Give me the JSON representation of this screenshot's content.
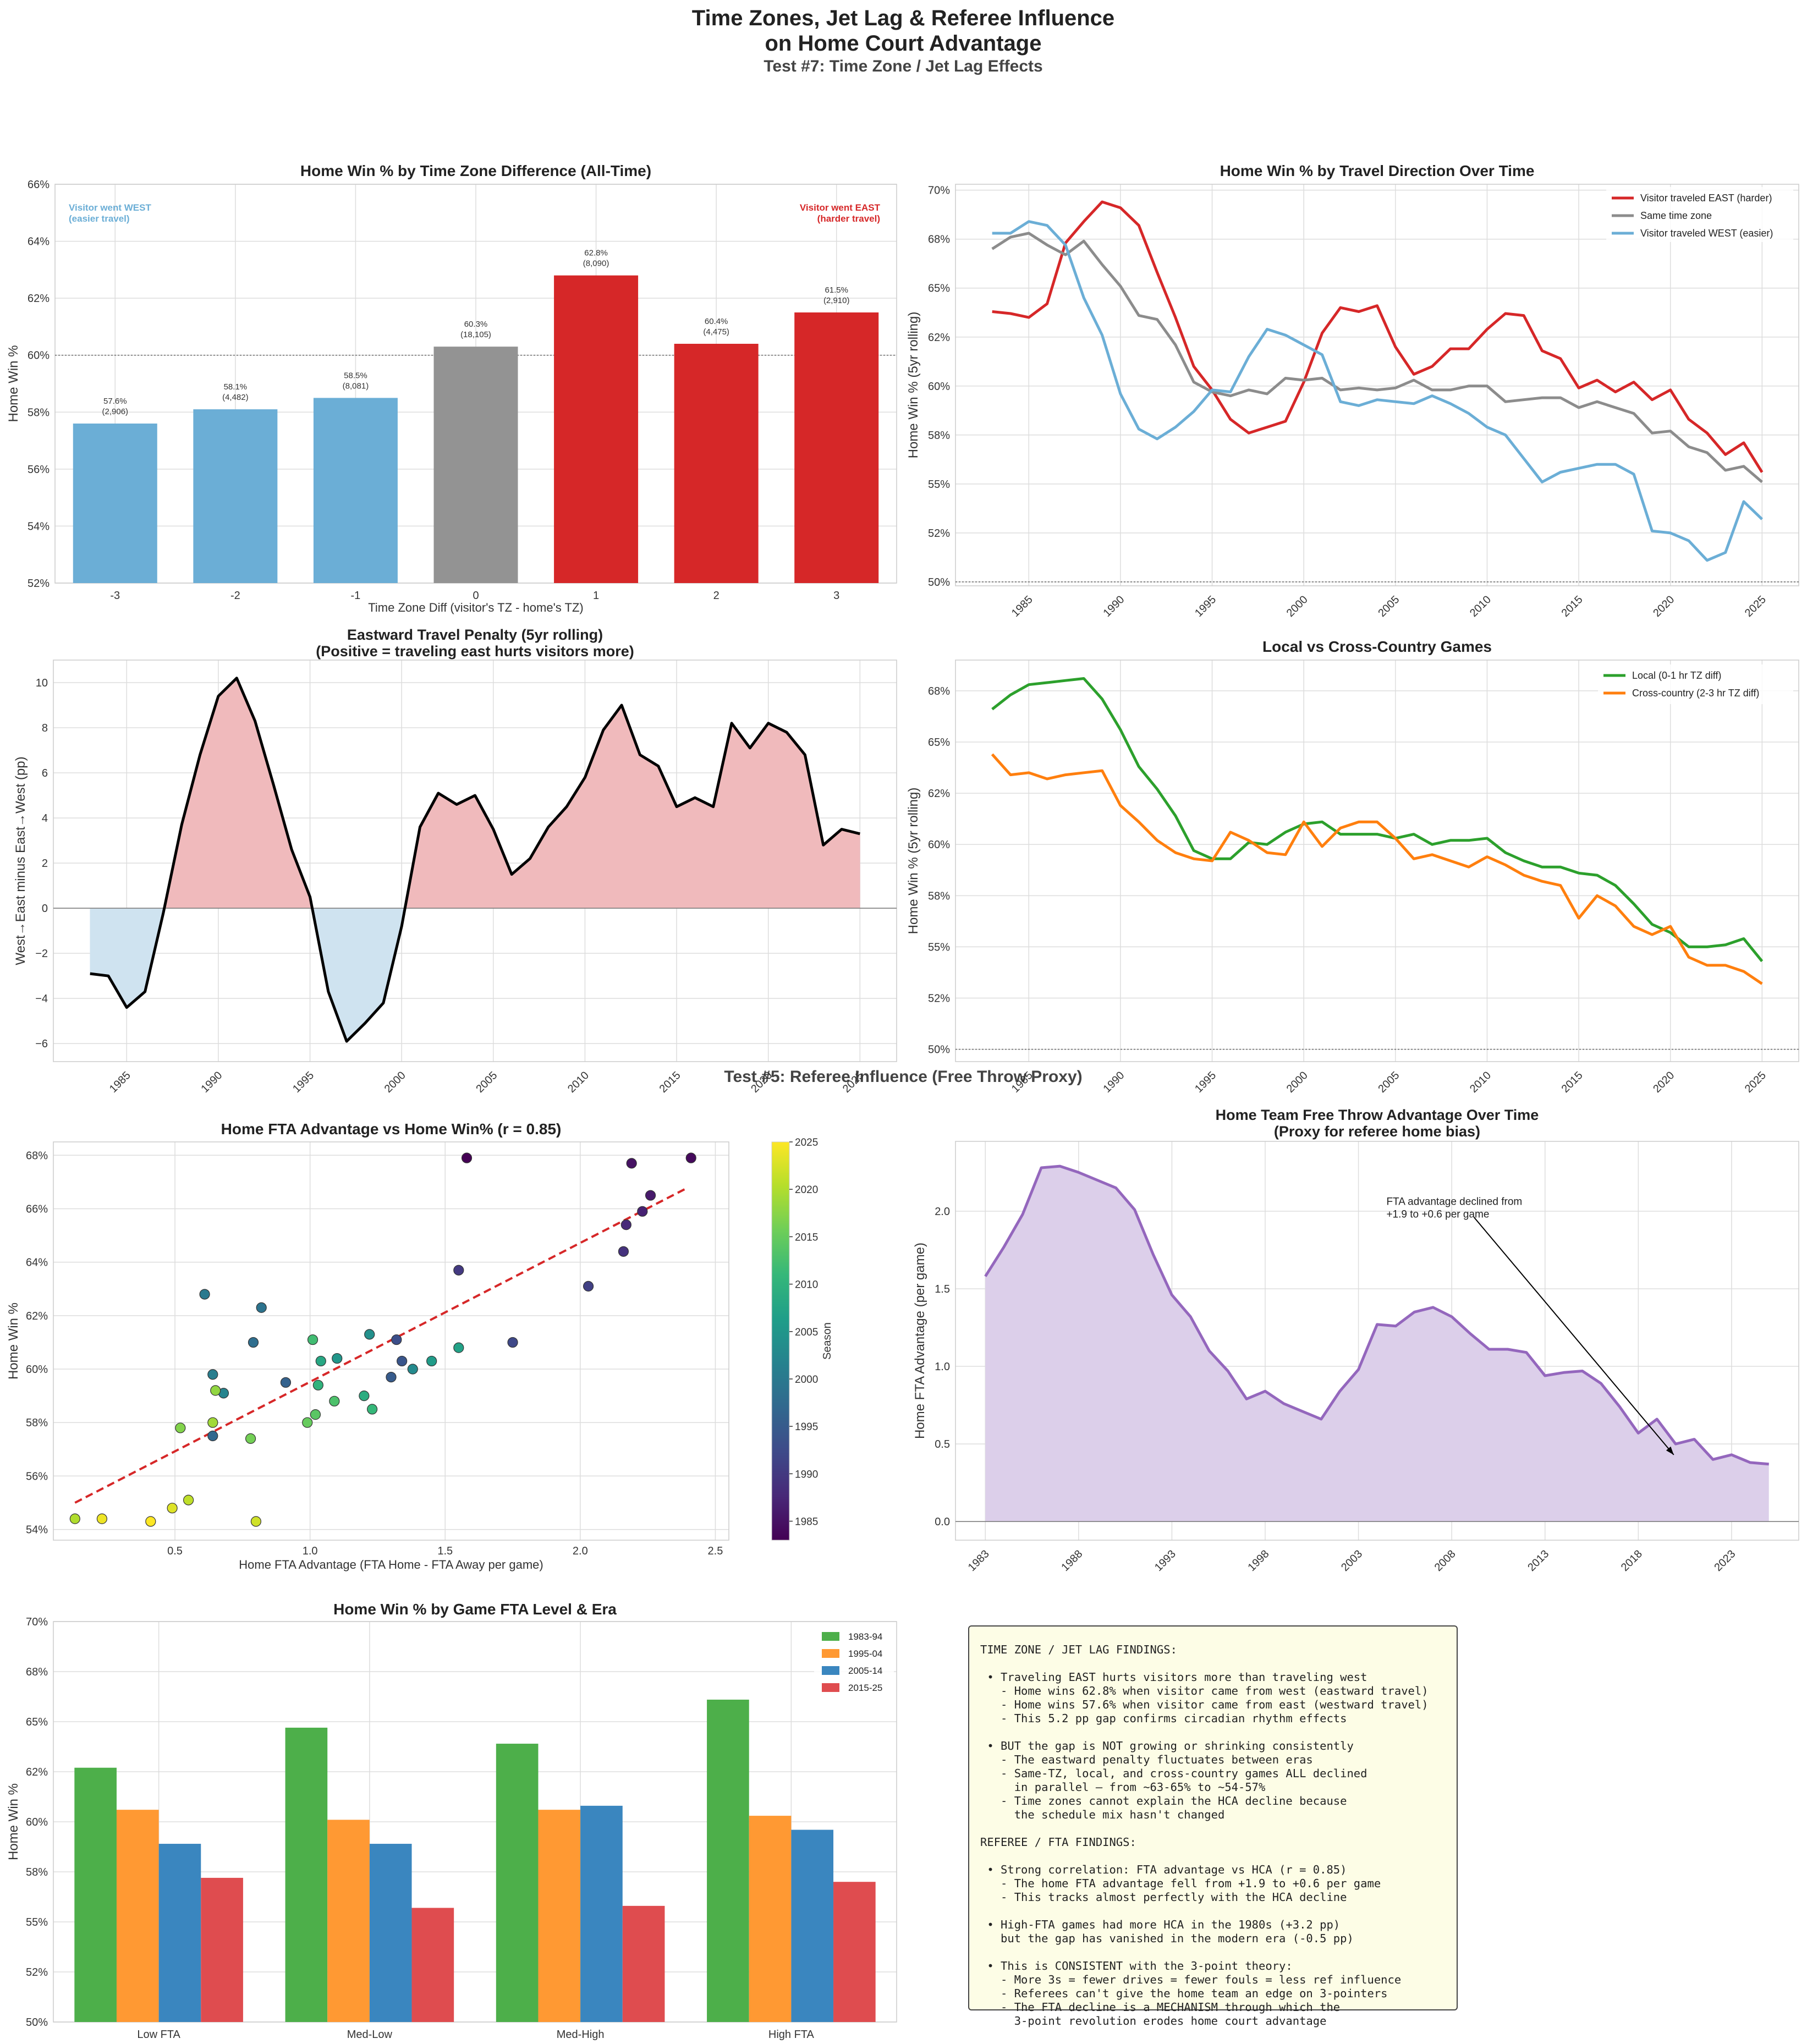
{
  "page": {
    "title_line1": "Time Zones, Jet Lag & Referee Influence",
    "title_line2": "on Home Court Advantage",
    "subtitle": "Test #7: Time Zone / Jet Lag Effects",
    "section2_title": "Test #5: Referee Influence (Free Throw Proxy)"
  },
  "colors": {
    "east": "#d62728",
    "west": "#6baed6",
    "same": "#8c8c8c",
    "bar_same": "#939393",
    "local": "#2ca02c",
    "cross": "#ff7f0e",
    "penalty_line": "#000000",
    "penalty_pos_fill": "#f0babc",
    "penalty_neg_fill": "#cfe3f0",
    "fta_line": "#9467bd",
    "fta_fill": "#dccfea",
    "era": [
      "#4daf4a",
      "#ff9933",
      "#3a86bf",
      "#df4c4f"
    ]
  },
  "chart_data": [
    {
      "id": "tz-bar",
      "type": "bar",
      "title": "Home Win % by Time Zone Difference (All-Time)",
      "xlabel": "Time Zone Diff (visitor's TZ - home's TZ)",
      "ylabel": "Home Win %",
      "ylim": [
        52,
        66
      ],
      "yticks": [
        "52%",
        "54%",
        "56%",
        "58%",
        "60%",
        "62%",
        "64%",
        "66%"
      ],
      "categories": [
        "-3",
        "-2",
        "-1",
        "0",
        "1",
        "2",
        "3"
      ],
      "values": [
        57.6,
        58.1,
        58.5,
        60.3,
        62.8,
        60.4,
        61.5
      ],
      "labels": [
        "57.6%",
        "58.1%",
        "58.5%",
        "60.3%",
        "62.8%",
        "60.4%",
        "61.5%"
      ],
      "counts": [
        "(2,906)",
        "(4,482)",
        "(8,081)",
        "(18,105)",
        "(8,090)",
        "(4,475)",
        "(2,910)"
      ],
      "bar_groups": [
        "west",
        "west",
        "west",
        "same",
        "east",
        "east",
        "east"
      ],
      "reference_line": 60,
      "annotation_west": [
        "Visitor went WEST",
        "(easier travel)"
      ],
      "annotation_east": [
        "Visitor went EAST",
        "(harder travel)"
      ]
    },
    {
      "id": "travel-direction",
      "type": "line",
      "title": "Home Win % by Travel Direction Over Time",
      "ylabel": "Home Win % (5yr rolling)",
      "ylim": [
        49.8,
        70.3
      ],
      "yticks": [
        50,
        52.5,
        55,
        57.5,
        60,
        62.5,
        65,
        67.5,
        70
      ],
      "ytick_labels": [
        "50%",
        "52%",
        "55%",
        "58%",
        "60%",
        "62%",
        "65%",
        "68%",
        "70%"
      ],
      "xlim": [
        1981,
        2027
      ],
      "xticks": [
        "1985",
        "1990",
        "1995",
        "2000",
        "2005",
        "2010",
        "2015",
        "2020",
        "2025"
      ],
      "x_start": 1983,
      "reference_line": 50,
      "legend": "top-right",
      "series": [
        {
          "name": "Visitor traveled EAST (harder)",
          "color_key": "east",
          "values": [
            63.8,
            63.7,
            63.5,
            64.2,
            67.3,
            68.4,
            69.4,
            69.1,
            68.2,
            65.8,
            63.5,
            61.0,
            59.8,
            58.3,
            57.6,
            57.9,
            58.2,
            60.2,
            62.7,
            64.0,
            63.8,
            64.1,
            62.0,
            60.6,
            61.0,
            61.9,
            61.9,
            62.9,
            63.7,
            63.6,
            61.8,
            61.4,
            59.9,
            60.3,
            59.7,
            60.2,
            59.3,
            59.8,
            58.3,
            57.6,
            56.5,
            57.1,
            55.6
          ]
        },
        {
          "name": "Same time zone",
          "color_key": "same",
          "values": [
            67.0,
            67.6,
            67.8,
            67.2,
            66.7,
            67.4,
            66.2,
            65.1,
            63.6,
            63.4,
            62.1,
            60.2,
            59.7,
            59.5,
            59.8,
            59.6,
            60.4,
            60.3,
            60.4,
            59.8,
            59.9,
            59.8,
            59.9,
            60.3,
            59.8,
            59.8,
            60.0,
            60.0,
            59.2,
            59.3,
            59.4,
            59.4,
            58.9,
            59.2,
            58.9,
            58.6,
            57.6,
            57.7,
            56.9,
            56.6,
            55.7,
            55.9,
            55.1
          ]
        },
        {
          "name": "Visitor traveled WEST (easier)",
          "color_key": "west",
          "values": [
            67.8,
            67.8,
            68.4,
            68.2,
            67.2,
            64.5,
            62.6,
            59.6,
            57.8,
            57.3,
            57.9,
            58.7,
            59.8,
            59.7,
            61.5,
            62.9,
            62.6,
            62.1,
            61.6,
            59.2,
            59.0,
            59.3,
            59.2,
            59.1,
            59.5,
            59.1,
            58.6,
            57.9,
            57.5,
            56.3,
            55.1,
            55.6,
            55.8,
            56.0,
            56.0,
            55.5,
            52.6,
            52.5,
            52.1,
            51.1,
            51.5,
            54.1,
            53.2
          ]
        }
      ]
    },
    {
      "id": "eastward-penalty",
      "type": "area",
      "title_line1": "Eastward Travel Penalty (5yr rolling)",
      "title_line2": "(Positive = traveling east hurts visitors more)",
      "ylabel": "West→East minus East→West (pp)",
      "ylim": [
        -6.8,
        11
      ],
      "yticks": [
        -6,
        -4,
        -2,
        0,
        2,
        4,
        6,
        8,
        10
      ],
      "xlim": [
        1981,
        2027
      ],
      "xticks": [
        "1985",
        "1990",
        "1995",
        "2000",
        "2005",
        "2010",
        "2015",
        "2020",
        "2025"
      ],
      "x_start": 1983,
      "values": [
        -2.9,
        -3.0,
        -4.4,
        -3.7,
        -0.2,
        3.7,
        6.8,
        9.4,
        10.2,
        8.3,
        5.5,
        2.6,
        0.5,
        -3.7,
        -5.9,
        -5.1,
        -4.2,
        -0.8,
        3.6,
        5.1,
        4.6,
        5.0,
        3.5,
        1.5,
        2.2,
        3.6,
        4.5,
        5.8,
        7.9,
        9.0,
        6.8,
        6.3,
        4.5,
        4.9,
        4.5,
        8.2,
        7.1,
        8.2,
        7.8,
        6.8,
        2.8,
        3.5,
        3.3
      ]
    },
    {
      "id": "local-vs-cross",
      "type": "line",
      "title": "Local vs Cross-Country Games",
      "ylabel": "Home Win % (5yr rolling)",
      "ylim": [
        49.4,
        69.0
      ],
      "yticks": [
        50,
        52.5,
        55,
        57.5,
        60,
        62.5,
        65,
        67.5
      ],
      "ytick_labels": [
        "50%",
        "52%",
        "55%",
        "58%",
        "60%",
        "62%",
        "65%",
        "68%"
      ],
      "xlim": [
        1981,
        2027
      ],
      "xticks": [
        "1985",
        "1990",
        "1995",
        "2000",
        "2005",
        "2010",
        "2015",
        "2020",
        "2025"
      ],
      "x_start": 1983,
      "reference_line": 50,
      "legend": "top-right",
      "series": [
        {
          "name": "Local (0-1 hr TZ diff)",
          "color_key": "local",
          "values": [
            66.6,
            67.3,
            67.8,
            67.9,
            68.0,
            68.1,
            67.1,
            65.6,
            63.8,
            62.7,
            61.4,
            59.7,
            59.3,
            59.3,
            60.1,
            60.0,
            60.6,
            61.0,
            61.1,
            60.5,
            60.5,
            60.5,
            60.3,
            60.5,
            60.0,
            60.2,
            60.2,
            60.3,
            59.6,
            59.2,
            58.9,
            58.9,
            58.6,
            58.5,
            58.0,
            57.1,
            56.1,
            55.7,
            55.0,
            55.0,
            55.1,
            55.4,
            54.3
          ]
        },
        {
          "name": "Cross-country (2-3 hr TZ diff)",
          "color_key": "cross",
          "values": [
            64.4,
            63.4,
            63.5,
            63.2,
            63.4,
            63.5,
            63.6,
            61.9,
            61.1,
            60.2,
            59.6,
            59.3,
            59.2,
            60.6,
            60.2,
            59.6,
            59.5,
            61.1,
            59.9,
            60.8,
            61.1,
            61.1,
            60.3,
            59.3,
            59.5,
            59.2,
            58.9,
            59.4,
            59.0,
            58.5,
            58.2,
            58.0,
            56.4,
            57.5,
            57.0,
            56.0,
            55.6,
            56.0,
            54.5,
            54.1,
            54.1,
            53.8,
            53.2
          ]
        }
      ]
    },
    {
      "id": "fta-scatter",
      "type": "scatter",
      "title": "Home FTA Advantage vs Home Win%  (r = 0.85)",
      "xlabel": "Home FTA Advantage (FTA Home - FTA Away per game)",
      "ylabel": "Home Win %",
      "xlim": [
        0.05,
        2.55
      ],
      "ylim": [
        53.6,
        68.5
      ],
      "xticks": [
        0.5,
        1.0,
        1.5,
        2.0,
        2.5
      ],
      "yticks": [
        54,
        56,
        58,
        60,
        62,
        64,
        66,
        68
      ],
      "colorbar_label": "Season",
      "colorbar_range": [
        1983,
        2025
      ],
      "colorbar_ticks": [
        1985,
        1990,
        1995,
        2000,
        2005,
        2010,
        2015,
        2020,
        2025
      ],
      "trend": {
        "x": [
          0.13,
          2.4
        ],
        "y": [
          55.0,
          66.8
        ]
      },
      "points": [
        {
          "x": 1.58,
          "y": 67.9,
          "season": 1983
        },
        {
          "x": 2.41,
          "y": 67.9,
          "season": 1984
        },
        {
          "x": 2.19,
          "y": 67.7,
          "season": 1985
        },
        {
          "x": 2.26,
          "y": 66.5,
          "season": 1986
        },
        {
          "x": 2.23,
          "y": 65.9,
          "season": 1987
        },
        {
          "x": 2.17,
          "y": 65.4,
          "season": 1988
        },
        {
          "x": 2.16,
          "y": 64.4,
          "season": 1989
        },
        {
          "x": 1.55,
          "y": 63.7,
          "season": 1990
        },
        {
          "x": 2.03,
          "y": 63.1,
          "season": 1991
        },
        {
          "x": 1.75,
          "y": 61.0,
          "season": 1992
        },
        {
          "x": 1.32,
          "y": 61.1,
          "season": 1993
        },
        {
          "x": 1.34,
          "y": 60.3,
          "season": 1994
        },
        {
          "x": 1.3,
          "y": 59.7,
          "season": 1995
        },
        {
          "x": 0.91,
          "y": 59.5,
          "season": 1996
        },
        {
          "x": 0.64,
          "y": 57.5,
          "season": 1997
        },
        {
          "x": 0.79,
          "y": 61.0,
          "season": 1998
        },
        {
          "x": 0.82,
          "y": 62.3,
          "season": 1999
        },
        {
          "x": 0.61,
          "y": 62.8,
          "season": 2000
        },
        {
          "x": 0.64,
          "y": 59.8,
          "season": 2001
        },
        {
          "x": 0.68,
          "y": 59.1,
          "season": 2002
        },
        {
          "x": 1.38,
          "y": 60.0,
          "season": 2003
        },
        {
          "x": 1.22,
          "y": 61.3,
          "season": 2004
        },
        {
          "x": 1.1,
          "y": 60.4,
          "season": 2005
        },
        {
          "x": 1.45,
          "y": 60.3,
          "season": 2006
        },
        {
          "x": 1.55,
          "y": 60.8,
          "season": 2007
        },
        {
          "x": 1.04,
          "y": 60.3,
          "season": 2008
        },
        {
          "x": 1.2,
          "y": 59.0,
          "season": 2009
        },
        {
          "x": 1.03,
          "y": 59.4,
          "season": 2010
        },
        {
          "x": 1.23,
          "y": 58.5,
          "season": 2011
        },
        {
          "x": 1.01,
          "y": 61.1,
          "season": 2012
        },
        {
          "x": 1.09,
          "y": 58.8,
          "season": 2013
        },
        {
          "x": 1.02,
          "y": 58.3,
          "season": 2014
        },
        {
          "x": 0.99,
          "y": 58.0,
          "season": 2015
        },
        {
          "x": 0.78,
          "y": 57.4,
          "season": 2016
        },
        {
          "x": 0.52,
          "y": 57.8,
          "season": 2017
        },
        {
          "x": 0.65,
          "y": 59.2,
          "season": 2018
        },
        {
          "x": 0.64,
          "y": 58.0,
          "season": 2019
        },
        {
          "x": 0.13,
          "y": 54.4,
          "season": 2020
        },
        {
          "x": 0.55,
          "y": 55.1,
          "season": 2021
        },
        {
          "x": 0.8,
          "y": 54.3,
          "season": 2022
        },
        {
          "x": 0.49,
          "y": 54.8,
          "season": 2023
        },
        {
          "x": 0.23,
          "y": 54.4,
          "season": 2024
        },
        {
          "x": 0.41,
          "y": 54.3,
          "season": 2025
        }
      ]
    },
    {
      "id": "fta-over-time",
      "type": "area",
      "title_line1": "Home Team Free Throw Advantage Over Time",
      "title_line2": "(Proxy for referee home bias)",
      "ylabel": "Home FTA Advantage (per game)",
      "ylim": [
        -0.12,
        2.45
      ],
      "yticks": [
        0.0,
        0.5,
        1.0,
        1.5,
        2.0
      ],
      "ytick_labels": [
        "0.0",
        "0.5",
        "1.0",
        "1.5",
        "2.0"
      ],
      "xlim": [
        1981.4,
        2026.6
      ],
      "xticks": [
        "1983",
        "1988",
        "1993",
        "1998",
        "2003",
        "2008",
        "2013",
        "2018",
        "2023"
      ],
      "x_start": 1983,
      "values": [
        1.58,
        1.77,
        1.98,
        2.28,
        2.29,
        2.25,
        2.2,
        2.15,
        2.01,
        1.72,
        1.46,
        1.32,
        1.1,
        0.97,
        0.79,
        0.84,
        0.76,
        0.71,
        0.66,
        0.84,
        0.98,
        1.27,
        1.26,
        1.35,
        1.38,
        1.32,
        1.21,
        1.11,
        1.11,
        1.09,
        0.94,
        0.96,
        0.97,
        0.89,
        0.74,
        0.57,
        0.66,
        0.5,
        0.53,
        0.4,
        0.43,
        0.38,
        0.37
      ],
      "annotation": [
        "FTA advantage declined from",
        "+1.9 to +0.6 per game"
      ]
    },
    {
      "id": "fta-era-bars",
      "type": "bar",
      "title": "Home Win % by Game FTA Level & Era",
      "ylabel": "Home Win %",
      "ylim": [
        50,
        70
      ],
      "yticks": [
        50,
        52.5,
        55,
        57.5,
        60,
        62.5,
        65,
        67.5,
        70
      ],
      "ytick_labels": [
        "50%",
        "52%",
        "55%",
        "58%",
        "60%",
        "62%",
        "65%",
        "68%",
        "70%"
      ],
      "categories": [
        "Low FTA",
        "Med-Low",
        "Med-High",
        "High FTA"
      ],
      "legend": "top-right",
      "series": [
        {
          "name": "1983-94",
          "values": [
            62.7,
            64.7,
            63.9,
            66.1
          ]
        },
        {
          "name": "1995-04",
          "values": [
            60.6,
            60.1,
            60.6,
            60.3
          ]
        },
        {
          "name": "2005-14",
          "values": [
            58.9,
            58.9,
            60.8,
            59.6
          ]
        },
        {
          "name": "2015-25",
          "values": [
            57.2,
            55.7,
            55.8,
            57.0
          ]
        }
      ]
    }
  ],
  "findings": {
    "lines": [
      "TIME ZONE / JET LAG FINDINGS:",
      "",
      " • Traveling EAST hurts visitors more than traveling west",
      "   - Home wins 62.8% when visitor came from west (eastward travel)",
      "   - Home wins 57.6% when visitor came from east (westward travel)",
      "   - This 5.2 pp gap confirms circadian rhythm effects",
      "",
      " • BUT the gap is NOT growing or shrinking consistently",
      "   - The eastward penalty fluctuates between eras",
      "   - Same-TZ, local, and cross-country games ALL declined",
      "     in parallel — from ~63-65% to ~54-57%",
      "   - Time zones cannot explain the HCA decline because",
      "     the schedule mix hasn't changed",
      "",
      "REFEREE / FTA FINDINGS:",
      "",
      " • Strong correlation: FTA advantage vs HCA (r = 0.85)",
      "   - The home FTA advantage fell from +1.9 to +0.6 per game",
      "   - This tracks almost perfectly with the HCA decline",
      "",
      " • High-FTA games had more HCA in the 1980s (+3.2 pp)",
      "   but the gap has vanished in the modern era (-0.5 pp)",
      "",
      " • This is CONSISTENT with the 3-point theory:",
      "   - More 3s = fewer drives = fewer fouls = less ref influence",
      "   - Referees can't give the home team an edge on 3-pointers",
      "   - The FTA decline is a MECHANISM through which the",
      "     3-point revolution erodes home court advantage"
    ]
  }
}
